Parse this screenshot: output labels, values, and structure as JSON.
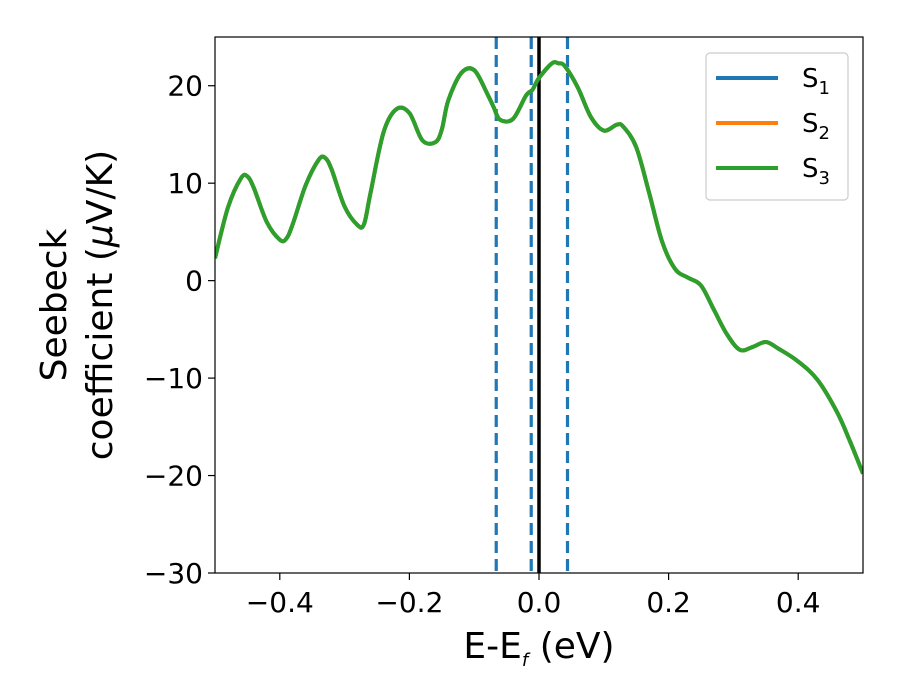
{
  "chart_data": {
    "type": "line",
    "xlabel_main": "E-E",
    "xlabel_sub": "f",
    "xlabel_unit": " (eV)",
    "ylabel_line1": "Seebeck",
    "ylabel_line2_text": "coefficient  (",
    "ylabel_line2_mu": "μ",
    "ylabel_line2_unit": "V/K)",
    "xlim": [
      -0.5,
      0.5
    ],
    "ylim": [
      -30,
      25
    ],
    "xticks": [
      -0.4,
      -0.2,
      0.0,
      0.2,
      0.4
    ],
    "xtick_labels": [
      "−0.4",
      "−0.2",
      "0.0",
      "0.2",
      "0.4"
    ],
    "yticks": [
      -30,
      -20,
      -10,
      0,
      10,
      20
    ],
    "ytick_labels": [
      "−30",
      "−20",
      "−10",
      "0",
      "10",
      "20"
    ],
    "grid": false,
    "legend_position": "top-right",
    "series": [
      {
        "name": "S",
        "sub": "1",
        "color": "#1f77b4"
      },
      {
        "name": "S",
        "sub": "2",
        "color": "#ff7f0e"
      },
      {
        "name": "S",
        "sub": "3",
        "color": "#2ca02c"
      }
    ],
    "shared_values": {
      "x": [
        -0.5,
        -0.48,
        -0.46,
        -0.45,
        -0.44,
        -0.42,
        -0.4,
        -0.39,
        -0.38,
        -0.36,
        -0.34,
        -0.33,
        -0.32,
        -0.3,
        -0.28,
        -0.27,
        -0.26,
        -0.24,
        -0.22,
        -0.2,
        -0.18,
        -0.16,
        -0.15,
        -0.14,
        -0.12,
        -0.1,
        -0.08,
        -0.07,
        -0.06,
        -0.04,
        -0.02,
        -0.01,
        0.0,
        0.02,
        0.03,
        0.04,
        0.06,
        0.08,
        0.1,
        0.12,
        0.13,
        0.15,
        0.17,
        0.19,
        0.21,
        0.23,
        0.25,
        0.27,
        0.29,
        0.31,
        0.33,
        0.35,
        0.37,
        0.4,
        0.43,
        0.46,
        0.48,
        0.5
      ],
      "y": [
        2.3,
        7.5,
        10.5,
        10.7,
        9.5,
        6.0,
        4.2,
        4.3,
        5.8,
        9.8,
        12.4,
        12.6,
        11.4,
        7.6,
        5.7,
        5.8,
        9.0,
        15.2,
        17.6,
        17.2,
        14.4,
        14.2,
        15.5,
        18.5,
        21.3,
        21.6,
        19.2,
        17.8,
        16.5,
        16.6,
        19.0,
        19.6,
        20.8,
        22.3,
        22.3,
        22.0,
        19.8,
        16.8,
        15.4,
        16.0,
        15.8,
        13.7,
        9.0,
        4.0,
        1.2,
        0.3,
        -0.5,
        -3.0,
        -5.5,
        -7.1,
        -6.8,
        -6.3,
        -7.0,
        -8.3,
        -10.2,
        -13.5,
        -16.5,
        -19.8
      ]
    },
    "vlines": [
      {
        "x": 0.0,
        "style": "solid",
        "color": "#000000"
      },
      {
        "x": -0.066,
        "style": "dashed",
        "color": "#1f77b4"
      },
      {
        "x": -0.012,
        "style": "dashed",
        "color": "#1f77b4"
      },
      {
        "x": 0.044,
        "style": "dashed",
        "color": "#1f77b4"
      }
    ]
  }
}
